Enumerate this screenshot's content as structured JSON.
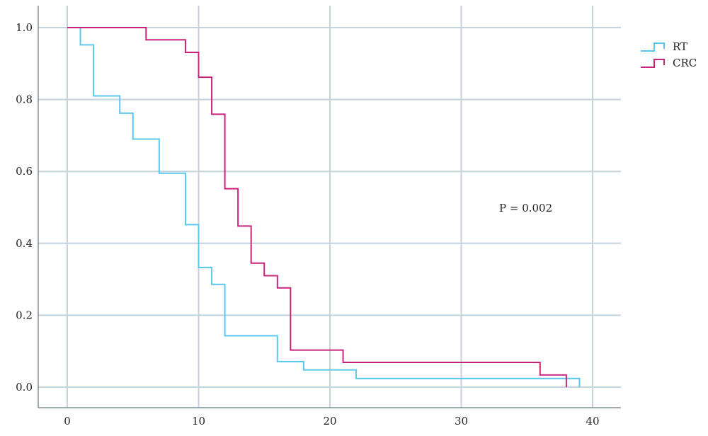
{
  "chart_data": {
    "type": "line",
    "title": "",
    "xlabel": "",
    "ylabel": "",
    "xlim": [
      0,
      40
    ],
    "ylim": [
      0,
      1
    ],
    "xticks": [
      "0",
      "10",
      "20",
      "30",
      "40"
    ],
    "yticks": [
      "0.0",
      "0.2",
      "0.4",
      "0.6",
      "0.8",
      "1.0"
    ],
    "grid": true,
    "legend_position": "right",
    "annotation": "P = 0.002",
    "series": [
      {
        "name": "RT",
        "color": "#5ac8ee",
        "step": true,
        "x": [
          0,
          1,
          2,
          4,
          5,
          7,
          9,
          10,
          11,
          12,
          16,
          18,
          22,
          39
        ],
        "y": [
          1.0,
          0.952,
          0.81,
          0.762,
          0.69,
          0.595,
          0.452,
          0.333,
          0.286,
          0.143,
          0.071,
          0.048,
          0.024,
          0.0
        ]
      },
      {
        "name": "CRC",
        "color": "#c9247c",
        "step": true,
        "x": [
          0,
          6,
          9,
          10,
          11,
          12,
          13,
          14,
          15,
          16,
          17,
          21,
          36,
          38
        ],
        "y": [
          1.0,
          0.966,
          0.931,
          0.862,
          0.759,
          0.552,
          0.448,
          0.345,
          0.31,
          0.276,
          0.103,
          0.069,
          0.034,
          0.0
        ]
      }
    ]
  }
}
